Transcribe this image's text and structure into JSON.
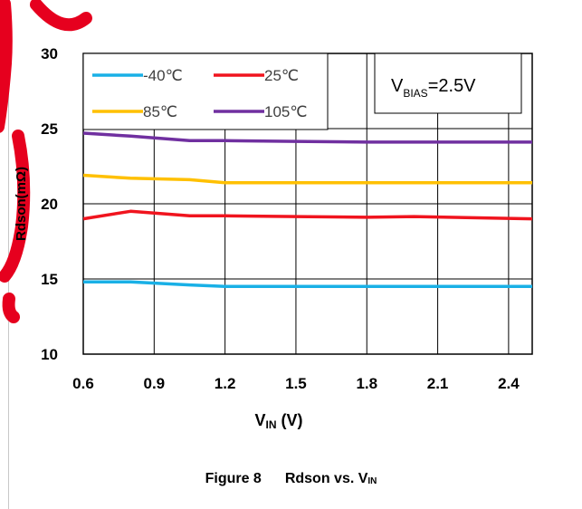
{
  "chart_data": {
    "type": "line",
    "xlabel": "V",
    "xlabel_sub": "IN",
    "xlabel_unit": " (V)",
    "ylabel": "Rdson(mΩ)",
    "xlim": [
      0.6,
      2.5
    ],
    "ylim": [
      10,
      30
    ],
    "x_ticks": [
      "0.6",
      "0.9",
      "1.2",
      "1.5",
      "1.8",
      "2.1",
      "2.4"
    ],
    "x_tick_values": [
      0.6,
      0.9,
      1.2,
      1.5,
      1.8,
      2.1,
      2.4
    ],
    "y_ticks": [
      "10",
      "15",
      "20",
      "25",
      "30"
    ],
    "y_tick_values": [
      10,
      15,
      20,
      25,
      30
    ],
    "grid": true,
    "legend_position": "top-left",
    "series": [
      {
        "name": "-40℃",
        "color": "#19b0e6",
        "x": [
          0.6,
          0.8,
          1.05,
          1.2,
          1.5,
          1.8,
          2.1,
          2.5
        ],
        "y": [
          14.8,
          14.8,
          14.6,
          14.5,
          14.5,
          14.5,
          14.5,
          14.5
        ]
      },
      {
        "name": "25℃",
        "color": "#f0141e",
        "x": [
          0.6,
          0.8,
          1.05,
          1.2,
          1.5,
          1.8,
          2.0,
          2.5
        ],
        "y": [
          19.0,
          19.5,
          19.2,
          19.2,
          19.15,
          19.1,
          19.15,
          19.0
        ]
      },
      {
        "name": "85℃",
        "color": "#ffc000",
        "x": [
          0.6,
          0.8,
          1.05,
          1.2,
          1.5,
          1.8,
          2.1,
          2.5
        ],
        "y": [
          21.9,
          21.7,
          21.6,
          21.4,
          21.4,
          21.4,
          21.4,
          21.4
        ]
      },
      {
        "name": "105℃",
        "color": "#7030a0",
        "x": [
          0.6,
          0.8,
          1.05,
          1.2,
          1.5,
          1.8,
          2.1,
          2.5
        ],
        "y": [
          24.7,
          24.5,
          24.2,
          24.2,
          24.15,
          24.1,
          24.1,
          24.1
        ]
      }
    ],
    "annotation": {
      "prefix": "V",
      "sub": "BIAS",
      "suffix": "=2.5V"
    }
  },
  "caption": {
    "figure_label": "Figure 8",
    "title": "Rdson vs. V",
    "title_sub": "IN"
  }
}
